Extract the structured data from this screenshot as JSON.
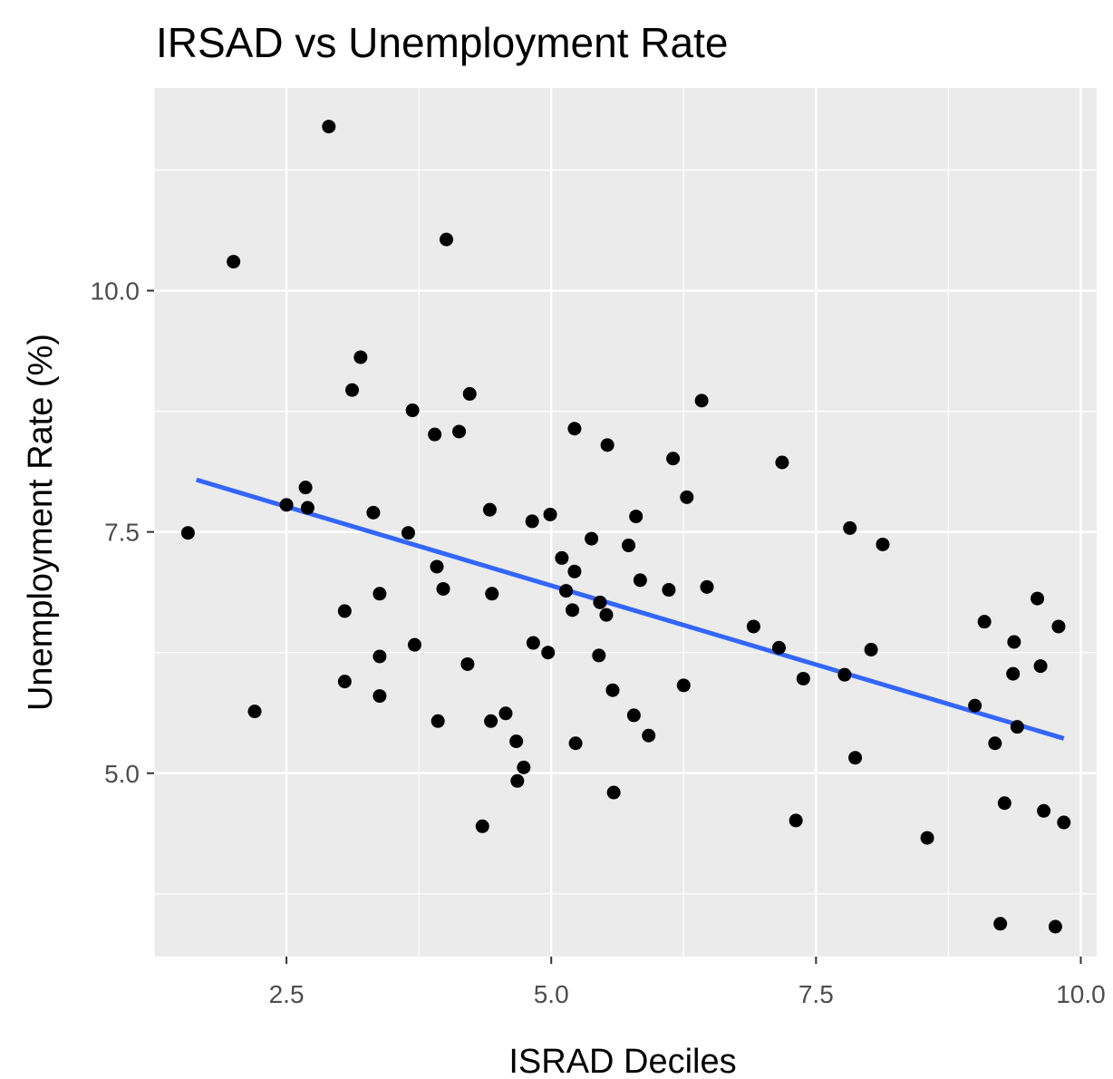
{
  "chart_data": {
    "type": "scatter",
    "title": "IRSAD vs Unemployment Rate",
    "xlabel": "ISRAD Deciles",
    "ylabel": "Unemployment Rate (%)",
    "xlim": [
      1.25,
      10.15
    ],
    "ylim": [
      3.1,
      12.1
    ],
    "x_ticks": [
      2.5,
      5.0,
      7.5,
      10.0
    ],
    "x_tick_labels": [
      "2.5",
      "5.0",
      "7.5",
      "10.0"
    ],
    "y_ticks": [
      5.0,
      7.5,
      10.0
    ],
    "y_tick_labels": [
      "5.0",
      "7.5",
      "10.0"
    ],
    "grid": true,
    "legend": "none",
    "colors": {
      "panel": "#ebebeb",
      "grid": "#ffffff",
      "points": "#000000",
      "trend": "#3366ff"
    },
    "points": [
      {
        "x": 1.57,
        "y": 7.49
      },
      {
        "x": 2.0,
        "y": 10.3
      },
      {
        "x": 2.2,
        "y": 5.64
      },
      {
        "x": 2.5,
        "y": 7.78
      },
      {
        "x": 2.68,
        "y": 7.96
      },
      {
        "x": 2.7,
        "y": 7.75
      },
      {
        "x": 2.9,
        "y": 11.7
      },
      {
        "x": 3.05,
        "y": 6.68
      },
      {
        "x": 3.05,
        "y": 5.95
      },
      {
        "x": 3.12,
        "y": 8.97
      },
      {
        "x": 3.2,
        "y": 9.31
      },
      {
        "x": 3.32,
        "y": 7.7
      },
      {
        "x": 3.38,
        "y": 6.86
      },
      {
        "x": 3.38,
        "y": 6.21
      },
      {
        "x": 3.38,
        "y": 5.8
      },
      {
        "x": 3.65,
        "y": 7.49
      },
      {
        "x": 3.69,
        "y": 8.76
      },
      {
        "x": 3.71,
        "y": 6.33
      },
      {
        "x": 3.9,
        "y": 8.51
      },
      {
        "x": 3.92,
        "y": 7.14
      },
      {
        "x": 3.93,
        "y": 5.54
      },
      {
        "x": 3.98,
        "y": 6.91
      },
      {
        "x": 4.01,
        "y": 10.53
      },
      {
        "x": 4.13,
        "y": 8.54
      },
      {
        "x": 4.21,
        "y": 6.13
      },
      {
        "x": 4.23,
        "y": 8.93
      },
      {
        "x": 4.35,
        "y": 4.45
      },
      {
        "x": 4.42,
        "y": 7.73
      },
      {
        "x": 4.43,
        "y": 5.54
      },
      {
        "x": 4.44,
        "y": 6.86
      },
      {
        "x": 4.57,
        "y": 5.62
      },
      {
        "x": 4.67,
        "y": 5.33
      },
      {
        "x": 4.68,
        "y": 4.92
      },
      {
        "x": 4.74,
        "y": 5.06
      },
      {
        "x": 4.82,
        "y": 7.61
      },
      {
        "x": 4.83,
        "y": 6.35
      },
      {
        "x": 4.97,
        "y": 6.25
      },
      {
        "x": 4.99,
        "y": 7.68
      },
      {
        "x": 5.1,
        "y": 7.23
      },
      {
        "x": 5.14,
        "y": 6.89
      },
      {
        "x": 5.2,
        "y": 6.69
      },
      {
        "x": 5.22,
        "y": 7.09
      },
      {
        "x": 5.22,
        "y": 8.57
      },
      {
        "x": 5.23,
        "y": 5.31
      },
      {
        "x": 5.38,
        "y": 7.43
      },
      {
        "x": 5.45,
        "y": 6.22
      },
      {
        "x": 5.46,
        "y": 6.77
      },
      {
        "x": 5.52,
        "y": 6.64
      },
      {
        "x": 5.53,
        "y": 8.4
      },
      {
        "x": 5.58,
        "y": 5.86
      },
      {
        "x": 5.59,
        "y": 4.8
      },
      {
        "x": 5.73,
        "y": 7.36
      },
      {
        "x": 5.78,
        "y": 5.6
      },
      {
        "x": 5.8,
        "y": 7.66
      },
      {
        "x": 5.84,
        "y": 7.0
      },
      {
        "x": 5.92,
        "y": 5.39
      },
      {
        "x": 6.11,
        "y": 6.9
      },
      {
        "x": 6.15,
        "y": 8.26
      },
      {
        "x": 6.25,
        "y": 5.91
      },
      {
        "x": 6.28,
        "y": 7.86
      },
      {
        "x": 6.42,
        "y": 8.86
      },
      {
        "x": 6.47,
        "y": 6.93
      },
      {
        "x": 6.91,
        "y": 6.52
      },
      {
        "x": 7.15,
        "y": 6.3
      },
      {
        "x": 7.18,
        "y": 8.22
      },
      {
        "x": 7.31,
        "y": 4.51
      },
      {
        "x": 7.38,
        "y": 5.98
      },
      {
        "x": 7.77,
        "y": 6.02
      },
      {
        "x": 7.82,
        "y": 7.54
      },
      {
        "x": 7.87,
        "y": 5.16
      },
      {
        "x": 8.02,
        "y": 6.28
      },
      {
        "x": 8.13,
        "y": 7.37
      },
      {
        "x": 8.55,
        "y": 4.33
      },
      {
        "x": 9.0,
        "y": 5.7
      },
      {
        "x": 9.09,
        "y": 6.57
      },
      {
        "x": 9.19,
        "y": 5.31
      },
      {
        "x": 9.24,
        "y": 3.44
      },
      {
        "x": 9.28,
        "y": 4.69
      },
      {
        "x": 9.36,
        "y": 6.03
      },
      {
        "x": 9.37,
        "y": 6.36
      },
      {
        "x": 9.4,
        "y": 5.48
      },
      {
        "x": 9.59,
        "y": 6.81
      },
      {
        "x": 9.62,
        "y": 6.11
      },
      {
        "x": 9.65,
        "y": 4.61
      },
      {
        "x": 9.76,
        "y": 3.41
      },
      {
        "x": 9.79,
        "y": 6.52
      },
      {
        "x": 9.84,
        "y": 4.49
      }
    ],
    "trend_line": {
      "x": [
        1.65,
        9.84
      ],
      "y": [
        8.04,
        5.36
      ]
    }
  }
}
